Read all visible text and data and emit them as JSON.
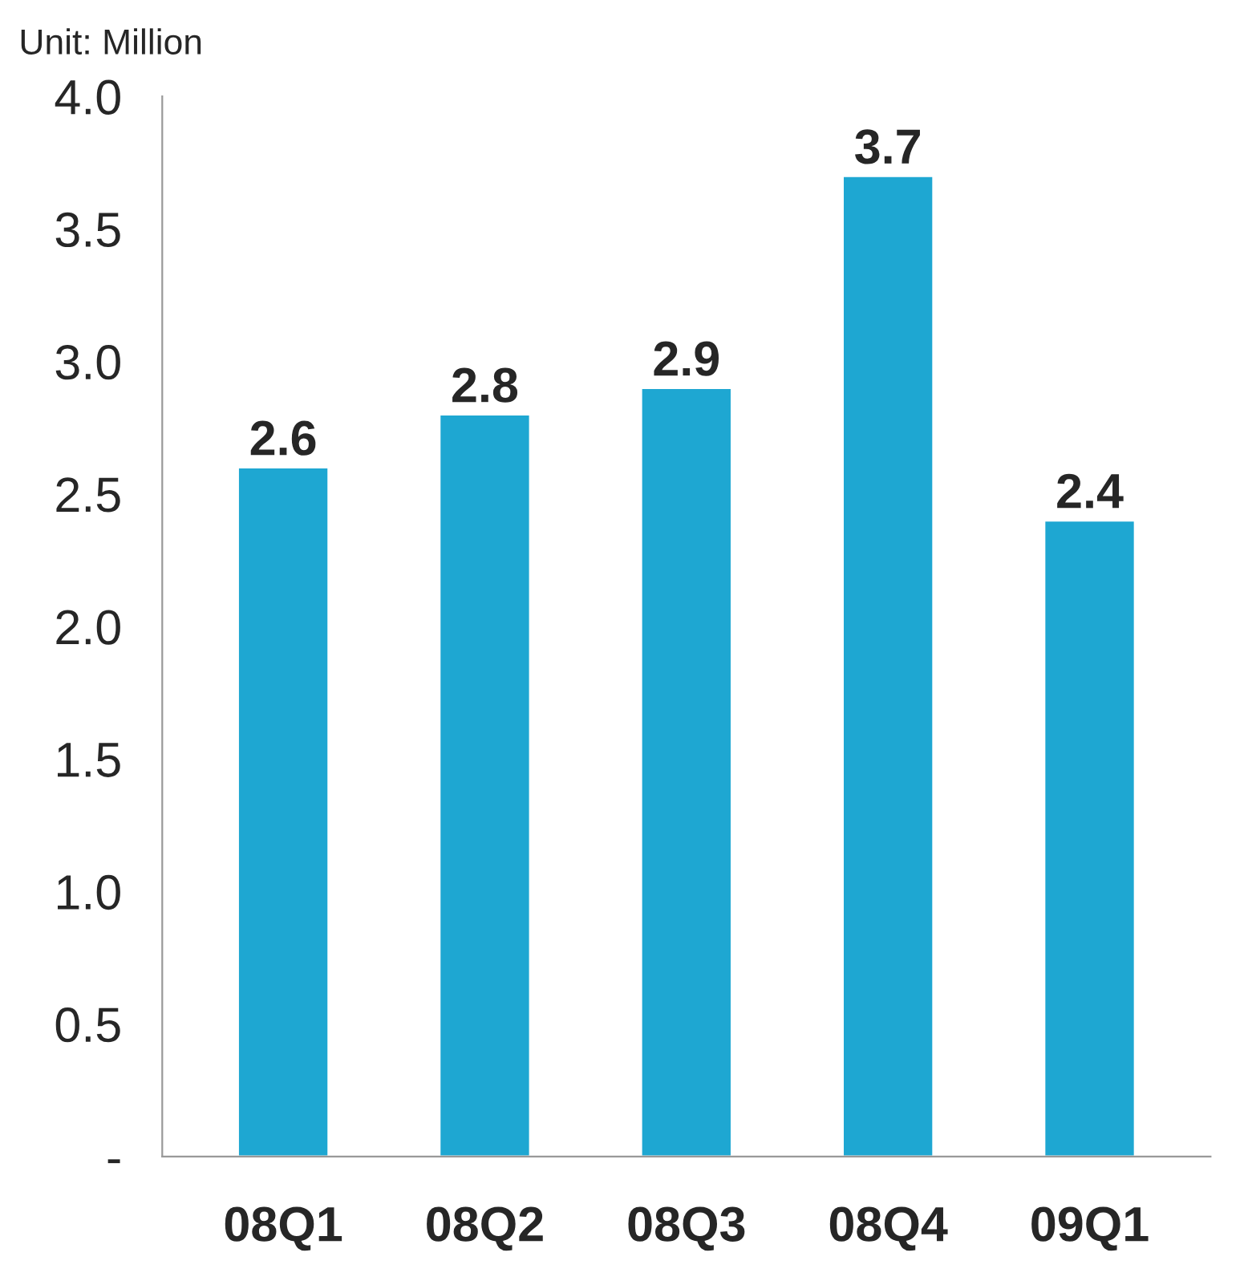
{
  "chart_data": {
    "type": "bar",
    "categories": [
      "08Q1",
      "08Q2",
      "08Q3",
      "08Q4",
      "09Q1"
    ],
    "values": [
      2.6,
      2.8,
      2.9,
      3.7,
      2.4
    ],
    "color": "#1ea7d2",
    "ylim": [
      0,
      4.0
    ],
    "yticks": [
      {
        "value": 0,
        "label": "-"
      },
      {
        "value": 0.5,
        "label": "0.5"
      },
      {
        "value": 1.0,
        "label": "1.0"
      },
      {
        "value": 1.5,
        "label": "1.5"
      },
      {
        "value": 2.0,
        "label": "2.0"
      },
      {
        "value": 2.5,
        "label": "2.5"
      },
      {
        "value": 3.0,
        "label": "3.0"
      },
      {
        "value": 3.5,
        "label": "3.5"
      },
      {
        "value": 4.0,
        "label": "4.0"
      }
    ],
    "grid": false,
    "data_labels": true,
    "annotations": [
      "Unit: Million"
    ]
  }
}
